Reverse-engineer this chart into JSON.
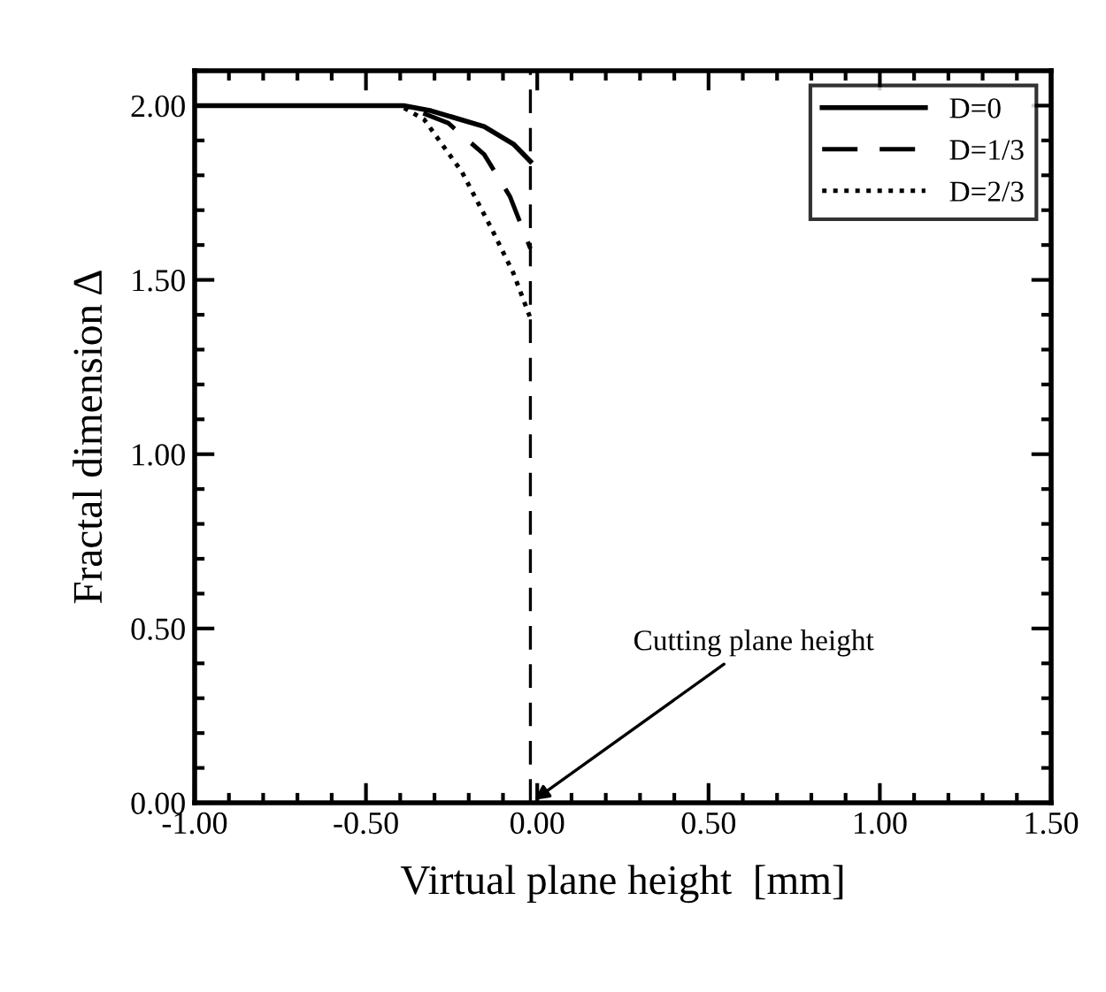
{
  "chart_data": {
    "type": "line",
    "xlabel": "Virtual plane height  [mm]",
    "ylabel": "Fractal dimension Δ",
    "xlim": [
      -1.0,
      1.5
    ],
    "ylim": [
      0.0,
      2.1
    ],
    "xticks": [
      {
        "value": -1.0,
        "label": "-1.00"
      },
      {
        "value": -0.5,
        "label": "-0.50"
      },
      {
        "value": 0.0,
        "label": "0.00"
      },
      {
        "value": 0.5,
        "label": "0.50"
      },
      {
        "value": 1.0,
        "label": "1.00"
      },
      {
        "value": 1.5,
        "label": "1.50"
      }
    ],
    "yticks": [
      {
        "value": 0.0,
        "label": "0.00"
      },
      {
        "value": 0.5,
        "label": "0.50"
      },
      {
        "value": 1.0,
        "label": "1.00"
      },
      {
        "value": 1.5,
        "label": "1.50"
      },
      {
        "value": 2.0,
        "label": "2.00"
      }
    ],
    "series": [
      {
        "name": "D=0",
        "color": "#000000",
        "line_style": "solid",
        "x": [
          -1.0,
          -0.39,
          -0.31,
          -0.155,
          -0.07,
          -0.02
        ],
        "values": [
          2.0,
          2.0,
          1.985,
          1.94,
          1.89,
          1.84
        ]
      },
      {
        "name": "D=1/3",
        "color": "#000000",
        "line_style": "dashed",
        "x": [
          -1.0,
          -0.39,
          -0.26,
          -0.155,
          -0.08,
          -0.02
        ],
        "values": [
          2.0,
          2.0,
          1.95,
          1.86,
          1.74,
          1.59
        ]
      },
      {
        "name": "D=2/3",
        "color": "#000000",
        "line_style": "dotted",
        "x": [
          -1.0,
          -0.4,
          -0.33,
          -0.22,
          -0.135,
          -0.07,
          -0.02
        ],
        "values": [
          2.0,
          2.0,
          1.96,
          1.81,
          1.65,
          1.52,
          1.39
        ]
      }
    ],
    "ref_lines": [
      {
        "axis": "x",
        "value": -0.02,
        "color": "#000000",
        "line_style": "dashed"
      }
    ],
    "annotations": [
      {
        "text": "Cutting plane height",
        "x": -0.02,
        "y": 0.0
      }
    ],
    "legend": "top right",
    "grid": false,
    "marker": "none"
  }
}
